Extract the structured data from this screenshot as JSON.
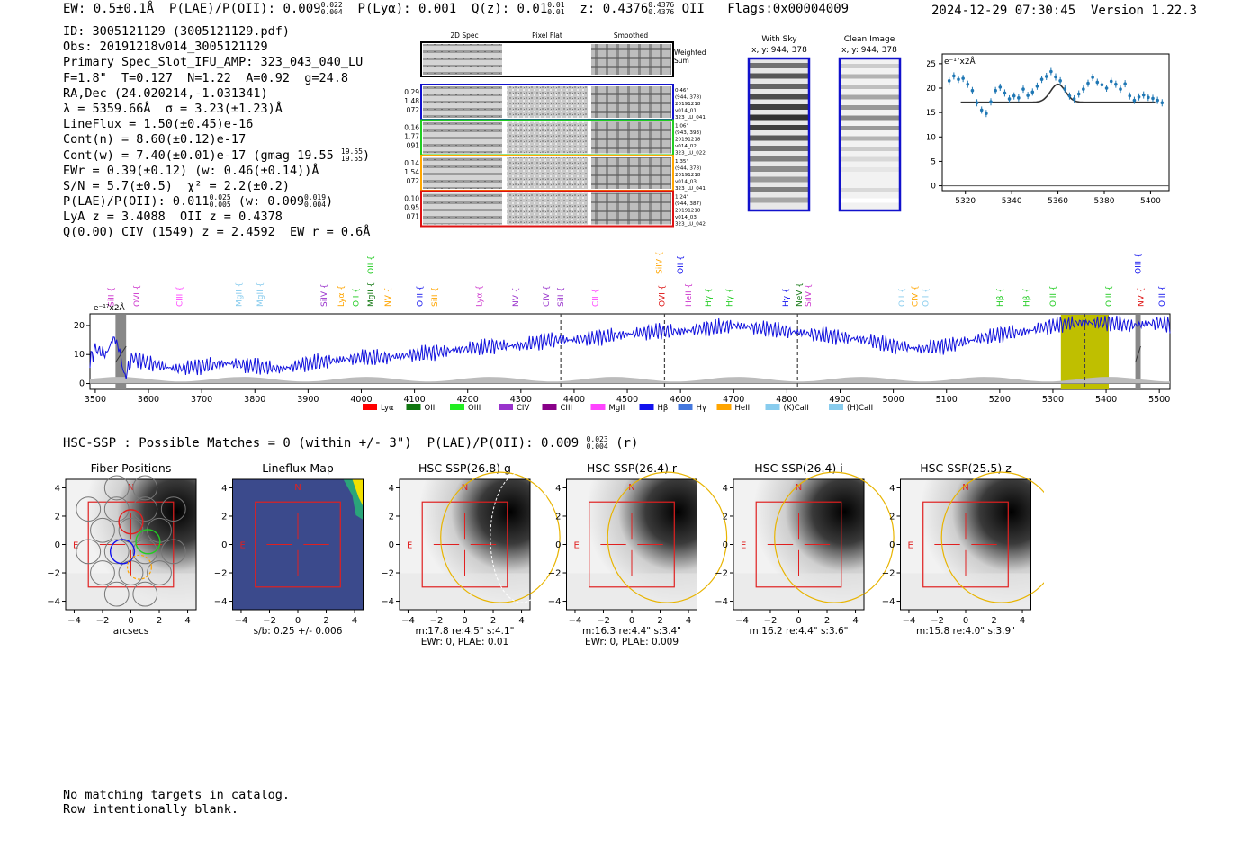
{
  "header": {
    "ew": "EW: 0.5±0.1Å",
    "plae": "P(LAE)/P(OII): 0.009",
    "plae_hi": "0.022",
    "plae_lo": "0.004",
    "plya": "P(Lyα): 0.001",
    "qz": "Q(z): 0.01",
    "qz_hi": "0.01",
    "qz_lo": "0.01",
    "z": "z: 0.4376",
    "z_hi": "0.4376",
    "z_lo": "0.4376",
    "z_line": "OII",
    "flags": "Flags:0x00004009",
    "datestamp": "2024-12-29 07:30:45  Version 1.22.3"
  },
  "info_lines": [
    "ID: 3005121129 (3005121129.pdf)",
    "Obs: 20191218v014_3005121129",
    "Primary Spec_Slot_IFU_AMP: 323_043_040_LU",
    "F=1.8\"  T=0.127  N=1.22  A=0.92  g=24.8",
    "RA,Dec (24.020214,-1.031341)",
    "λ = 5359.66Å  σ = 3.23(±1.23)Å",
    "LineFlux = 1.50(±0.45)e-16",
    "Cont(n) = 8.60(±0.12)e-17"
  ],
  "info_cont_w": "Cont(w) = 7.40(±0.01)e-17 (gmag 19.55",
  "info_cont_w_hi": "19.55",
  "info_cont_w_lo": "19.55",
  "info_lines2": [
    "EWr = 0.39(±0.12) (w: 0.46(±0.14))Å",
    "S/N = 5.7(±0.5)  χ² = 2.2(±0.2)"
  ],
  "info_plae": "P(LAE)/P(OII): 0.011",
  "info_plae_hi": "0.025",
  "info_plae_lo": "0.005",
  "info_plae_w": "(w: 0.009",
  "info_plae_w_hi": "0.019",
  "info_plae_w_lo": "0.004",
  "info_lines3": [
    "LyA z = 3.4088  OII z = 0.4378",
    "Q(0.00) CIV (1549) z = 2.4592  EW r = 0.6Å"
  ],
  "cutouts": {
    "col_labels": [
      "2D Spec",
      "Pixel Flat",
      "Smoothed"
    ],
    "weighted_label": [
      "Weighted",
      "Sum"
    ],
    "rows": [
      {
        "left": [
          "0.29",
          "1.48",
          "072"
        ],
        "right": [
          "0.46\"",
          "(944, 378)",
          "20191218",
          "v014_01",
          "323_LU_041"
        ],
        "color": "#1111cc"
      },
      {
        "left": [
          "0.16",
          "1.77",
          "091"
        ],
        "right": [
          "1.06\"",
          "(943, 393)",
          "20191218",
          "v014_02",
          "323_LU_022"
        ],
        "color": "#22cc22"
      },
      {
        "left": [
          "0.14",
          "1.54",
          "072"
        ],
        "right": [
          "1.35\"",
          "(944, 378)",
          "20191218",
          "v014_03",
          "323_LU_041"
        ],
        "color": "#ffa500"
      },
      {
        "left": [
          "0.10",
          "0.95",
          "071"
        ],
        "right": [
          "1.24\"",
          "(944, 387)",
          "20191218",
          "v014_03",
          "323_LU_042"
        ],
        "color": "#dd1111"
      }
    ],
    "with_sky": [
      "With Sky",
      "x, y: 944, 378"
    ],
    "clean_image": [
      "Clean Image",
      "x, y: 944, 378"
    ]
  },
  "zoom_chart": {
    "unit_label": "e⁻¹⁷x2Å",
    "x_ticks": [
      "5320",
      "5340",
      "5360",
      "5380",
      "5400"
    ],
    "y_ticks": [
      "0",
      "5",
      "10",
      "15",
      "20",
      "25"
    ]
  },
  "spectrum": {
    "unit_label": "e⁻¹⁷x2Å",
    "x_ticks": [
      "3500",
      "3600",
      "3700",
      "3800",
      "3900",
      "4000",
      "4100",
      "4200",
      "4300",
      "4400",
      "4500",
      "4600",
      "4700",
      "4800",
      "4900",
      "5000",
      "5100",
      "5200",
      "5300",
      "5400",
      "5500"
    ],
    "y_ticks": [
      "0",
      "10",
      "20"
    ],
    "line_labels": [
      {
        "name": "SiII",
        "color": "#cc33cc",
        "w": 3530
      },
      {
        "name": "OVI",
        "color": "#cc33cc",
        "w": 3578
      },
      {
        "name": "CIII",
        "color": "#ff44ff",
        "w": 3658
      },
      {
        "name": "MgII",
        "color": "#88ccee",
        "w": 3770
      },
      {
        "name": "MgII",
        "color": "#88ccee",
        "w": 3810
      },
      {
        "name": "SiIV",
        "color": "#9933cc",
        "w": 3930
      },
      {
        "name": "Lyα",
        "color": "#ffa500",
        "w": 3962
      },
      {
        "name": "OII",
        "color": "#22cc22",
        "w": 3990
      },
      {
        "name": "MgII",
        "color": "#117711",
        "w": 4018
      },
      {
        "name": "NV",
        "color": "#ffa500",
        "w": 4050
      },
      {
        "name": "OIII",
        "color": "#1111ee",
        "w": 4110
      },
      {
        "name": "SiII",
        "color": "#ffa500",
        "w": 4138
      },
      {
        "name": "Lyα",
        "color": "#cc33cc",
        "w": 4222
      },
      {
        "name": "NV",
        "color": "#9933cc",
        "w": 4290
      },
      {
        "name": "CIV",
        "color": "#9933cc",
        "w": 4348
      },
      {
        "name": "SiII",
        "color": "#9933cc",
        "w": 4375
      },
      {
        "name": "CII",
        "color": "#ff44ff",
        "w": 4440
      },
      {
        "name": "OVI",
        "color": "#dd1111",
        "w": 4565
      },
      {
        "name": "HeII",
        "color": "#cc33cc",
        "w": 4615
      },
      {
        "name": "Hγ",
        "color": "#22cc22",
        "w": 4652
      },
      {
        "name": "Hγ",
        "color": "#22cc22",
        "w": 4692
      },
      {
        "name": "Hγ",
        "color": "#1111ee",
        "w": 4798
      },
      {
        "name": "NeV",
        "color": "#117711",
        "w": 4823
      },
      {
        "name": "SiIV",
        "color": "#cc33cc",
        "w": 4840
      },
      {
        "name": "OII",
        "color": "#88ccee",
        "w": 5016
      },
      {
        "name": "CIV",
        "color": "#ffa500",
        "w": 5040
      },
      {
        "name": "OII",
        "color": "#88ccee",
        "w": 5061
      },
      {
        "name": "Hβ",
        "color": "#22cc22",
        "w": 5200
      },
      {
        "name": "Hβ",
        "color": "#22cc22",
        "w": 5250
      },
      {
        "name": "OIII",
        "color": "#22cc22",
        "w": 5300
      },
      {
        "name": "OIII",
        "color": "#22cc22",
        "w": 5405
      },
      {
        "name": "NV",
        "color": "#dd1111",
        "w": 5465
      },
      {
        "name": "OIII",
        "color": "#1111ee",
        "w": 5505
      }
    ],
    "high_labels": [
      {
        "name": "OII",
        "color": "#22cc22",
        "w": 4018
      },
      {
        "name": "SiIV",
        "color": "#ffa500",
        "w": 4560
      },
      {
        "name": "OII",
        "color": "#1111ee",
        "w": 4600
      },
      {
        "name": "OIII",
        "color": "#1111ee",
        "w": 5460
      }
    ],
    "legend": [
      {
        "name": "Lyα",
        "color": "#ff0000"
      },
      {
        "name": "OII",
        "color": "#117711"
      },
      {
        "name": "OIII",
        "color": "#22ee22"
      },
      {
        "name": "CIV",
        "color": "#9933cc"
      },
      {
        "name": "CIII",
        "color": "#880088"
      },
      {
        "name": "MgII",
        "color": "#ff44ff"
      },
      {
        "name": "Hβ",
        "color": "#1111ee"
      },
      {
        "name": "Hγ",
        "color": "#4477dd"
      },
      {
        "name": "HeII",
        "color": "#ffa500"
      },
      {
        "name": "(K)CaII",
        "color": "#88ccee"
      },
      {
        "name": "(H)CaII",
        "color": "#88ccee"
      }
    ]
  },
  "hsc": {
    "title": "HSC-SSP : Possible Matches = 0 (within +/- 3\")  P(LAE)/P(OII): 0.009",
    "title_hi": "0.023",
    "title_lo": "0.004",
    "title_suffix": "(r)",
    "panels": [
      {
        "title": "Fiber Positions",
        "line1": "arcsecs",
        "line2": ""
      },
      {
        "title": "Lineflux Map",
        "line1": "s/b: 0.25 +/- 0.006",
        "line2": ""
      },
      {
        "title": "HSC SSP(26.8) g",
        "line1": "m:17.8  re:4.5\"  s:4.1\"",
        "line2": "EWr: 0, PLAE: 0.01"
      },
      {
        "title": "HSC SSP(26.4) r",
        "line1": "m:16.3  re:4.4\"  s:3.4\"",
        "line2": "EWr: 0, PLAE: 0.009"
      },
      {
        "title": "HSC SSP(26.4) i",
        "line1": "m:16.2  re:4.4\"  s:3.6\"",
        "line2": ""
      },
      {
        "title": "HSC SSP(25.5) z",
        "line1": "m:15.8  re:4.0\"  s:3.9\"",
        "line2": ""
      }
    ],
    "axis_ticks": [
      "−4",
      "−2",
      "0",
      "2",
      "4"
    ],
    "compass_n": "N",
    "compass_e": "E"
  },
  "footer": [
    "No matching targets in catalog.",
    "Row intentionally blank."
  ],
  "chart_data": [
    {
      "type": "line",
      "title": "",
      "ylabel": "e⁻¹⁷x2Å",
      "xlim": [
        5310,
        5408
      ],
      "ylim": [
        -1,
        27
      ],
      "x": [
        5313,
        5315,
        5317,
        5319,
        5321,
        5323,
        5325,
        5327,
        5329,
        5331,
        5333,
        5335,
        5337,
        5339,
        5341,
        5343,
        5345,
        5347,
        5349,
        5351,
        5353,
        5355,
        5357,
        5359,
        5361,
        5363,
        5365,
        5367,
        5369,
        5371,
        5373,
        5375,
        5377,
        5379,
        5381,
        5383,
        5385,
        5387,
        5389,
        5391,
        5393,
        5395,
        5397,
        5399,
        5401,
        5403,
        5405
      ],
      "values": [
        21.5,
        22.5,
        21.8,
        22.0,
        20.8,
        19.5,
        17.0,
        15.5,
        14.8,
        17.2,
        19.5,
        20.2,
        19.0,
        17.8,
        18.4,
        18.0,
        19.8,
        18.5,
        19.2,
        20.4,
        21.8,
        22.4,
        23.4,
        22.3,
        21.5,
        19.8,
        18.4,
        17.8,
        18.8,
        19.8,
        21.0,
        22.2,
        21.2,
        20.7,
        20.0,
        21.4,
        20.8,
        19.8,
        20.9,
        18.4,
        17.5,
        18.2,
        18.6,
        18.1,
        17.9,
        17.5,
        17.0
      ],
      "model_baseline": 17.1,
      "model_peak": 20.8,
      "model_center": 5360,
      "model_sigma": 3.23
    },
    {
      "type": "line",
      "title": "",
      "ylabel": "e⁻¹⁷x2Å",
      "xlim": [
        3490,
        5520
      ],
      "ylim": [
        -2,
        24
      ],
      "series": [
        {
          "name": "flux"
        }
      ],
      "x_start": 3490,
      "x_end": 5520,
      "anchors": [
        [
          3490,
          8
        ],
        [
          3500,
          12
        ],
        [
          3520,
          10
        ],
        [
          3535,
          16
        ],
        [
          3545,
          12
        ],
        [
          3555,
          2
        ],
        [
          3570,
          9
        ],
        [
          3600,
          7
        ],
        [
          3650,
          5
        ],
        [
          3700,
          6
        ],
        [
          3750,
          7
        ],
        [
          3800,
          6
        ],
        [
          3850,
          5
        ],
        [
          3900,
          7
        ],
        [
          3950,
          8
        ],
        [
          4000,
          9
        ],
        [
          4050,
          9
        ],
        [
          4100,
          10
        ],
        [
          4150,
          11
        ],
        [
          4200,
          12
        ],
        [
          4250,
          13
        ],
        [
          4300,
          13
        ],
        [
          4350,
          15
        ],
        [
          4400,
          15
        ],
        [
          4450,
          16
        ],
        [
          4500,
          17
        ],
        [
          4550,
          18
        ],
        [
          4600,
          18
        ],
        [
          4650,
          19
        ],
        [
          4700,
          20
        ],
        [
          4750,
          19
        ],
        [
          4800,
          18
        ],
        [
          4850,
          17
        ],
        [
          4900,
          16
        ],
        [
          4950,
          15
        ],
        [
          5000,
          13
        ],
        [
          5050,
          12
        ],
        [
          5100,
          13
        ],
        [
          5150,
          15
        ],
        [
          5200,
          17
        ],
        [
          5250,
          18
        ],
        [
          5300,
          20
        ],
        [
          5350,
          21
        ],
        [
          5400,
          21
        ],
        [
          5450,
          20
        ],
        [
          5500,
          21
        ],
        [
          5520,
          20
        ]
      ],
      "dashed_lines": [
        4375,
        4570,
        4820,
        5360
      ],
      "shaded_regions": [
        [
          5315,
          5405
        ]
      ],
      "masked_regions": [
        [
          3538,
          3558
        ],
        [
          5455,
          5465
        ]
      ]
    }
  ]
}
